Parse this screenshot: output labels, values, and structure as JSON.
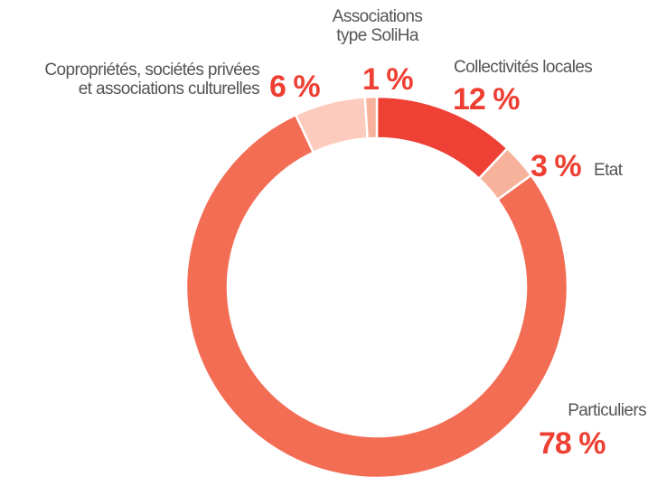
{
  "chart_data": {
    "type": "donut",
    "categories": [
      "Collectivités locales",
      "Etat",
      "Particuliers",
      "Copropriétés, sociétés privées\net associations culturelles",
      "Associations\ntype SoliHa"
    ],
    "values": [
      12,
      3,
      78,
      6,
      1
    ],
    "value_labels": [
      "12 %",
      "3 %",
      "78 %",
      "6 %",
      "1 %"
    ],
    "colors": [
      "#ee4035",
      "#f7b29c",
      "#f26d54",
      "#fccbbd",
      "#f7b29c"
    ]
  }
}
